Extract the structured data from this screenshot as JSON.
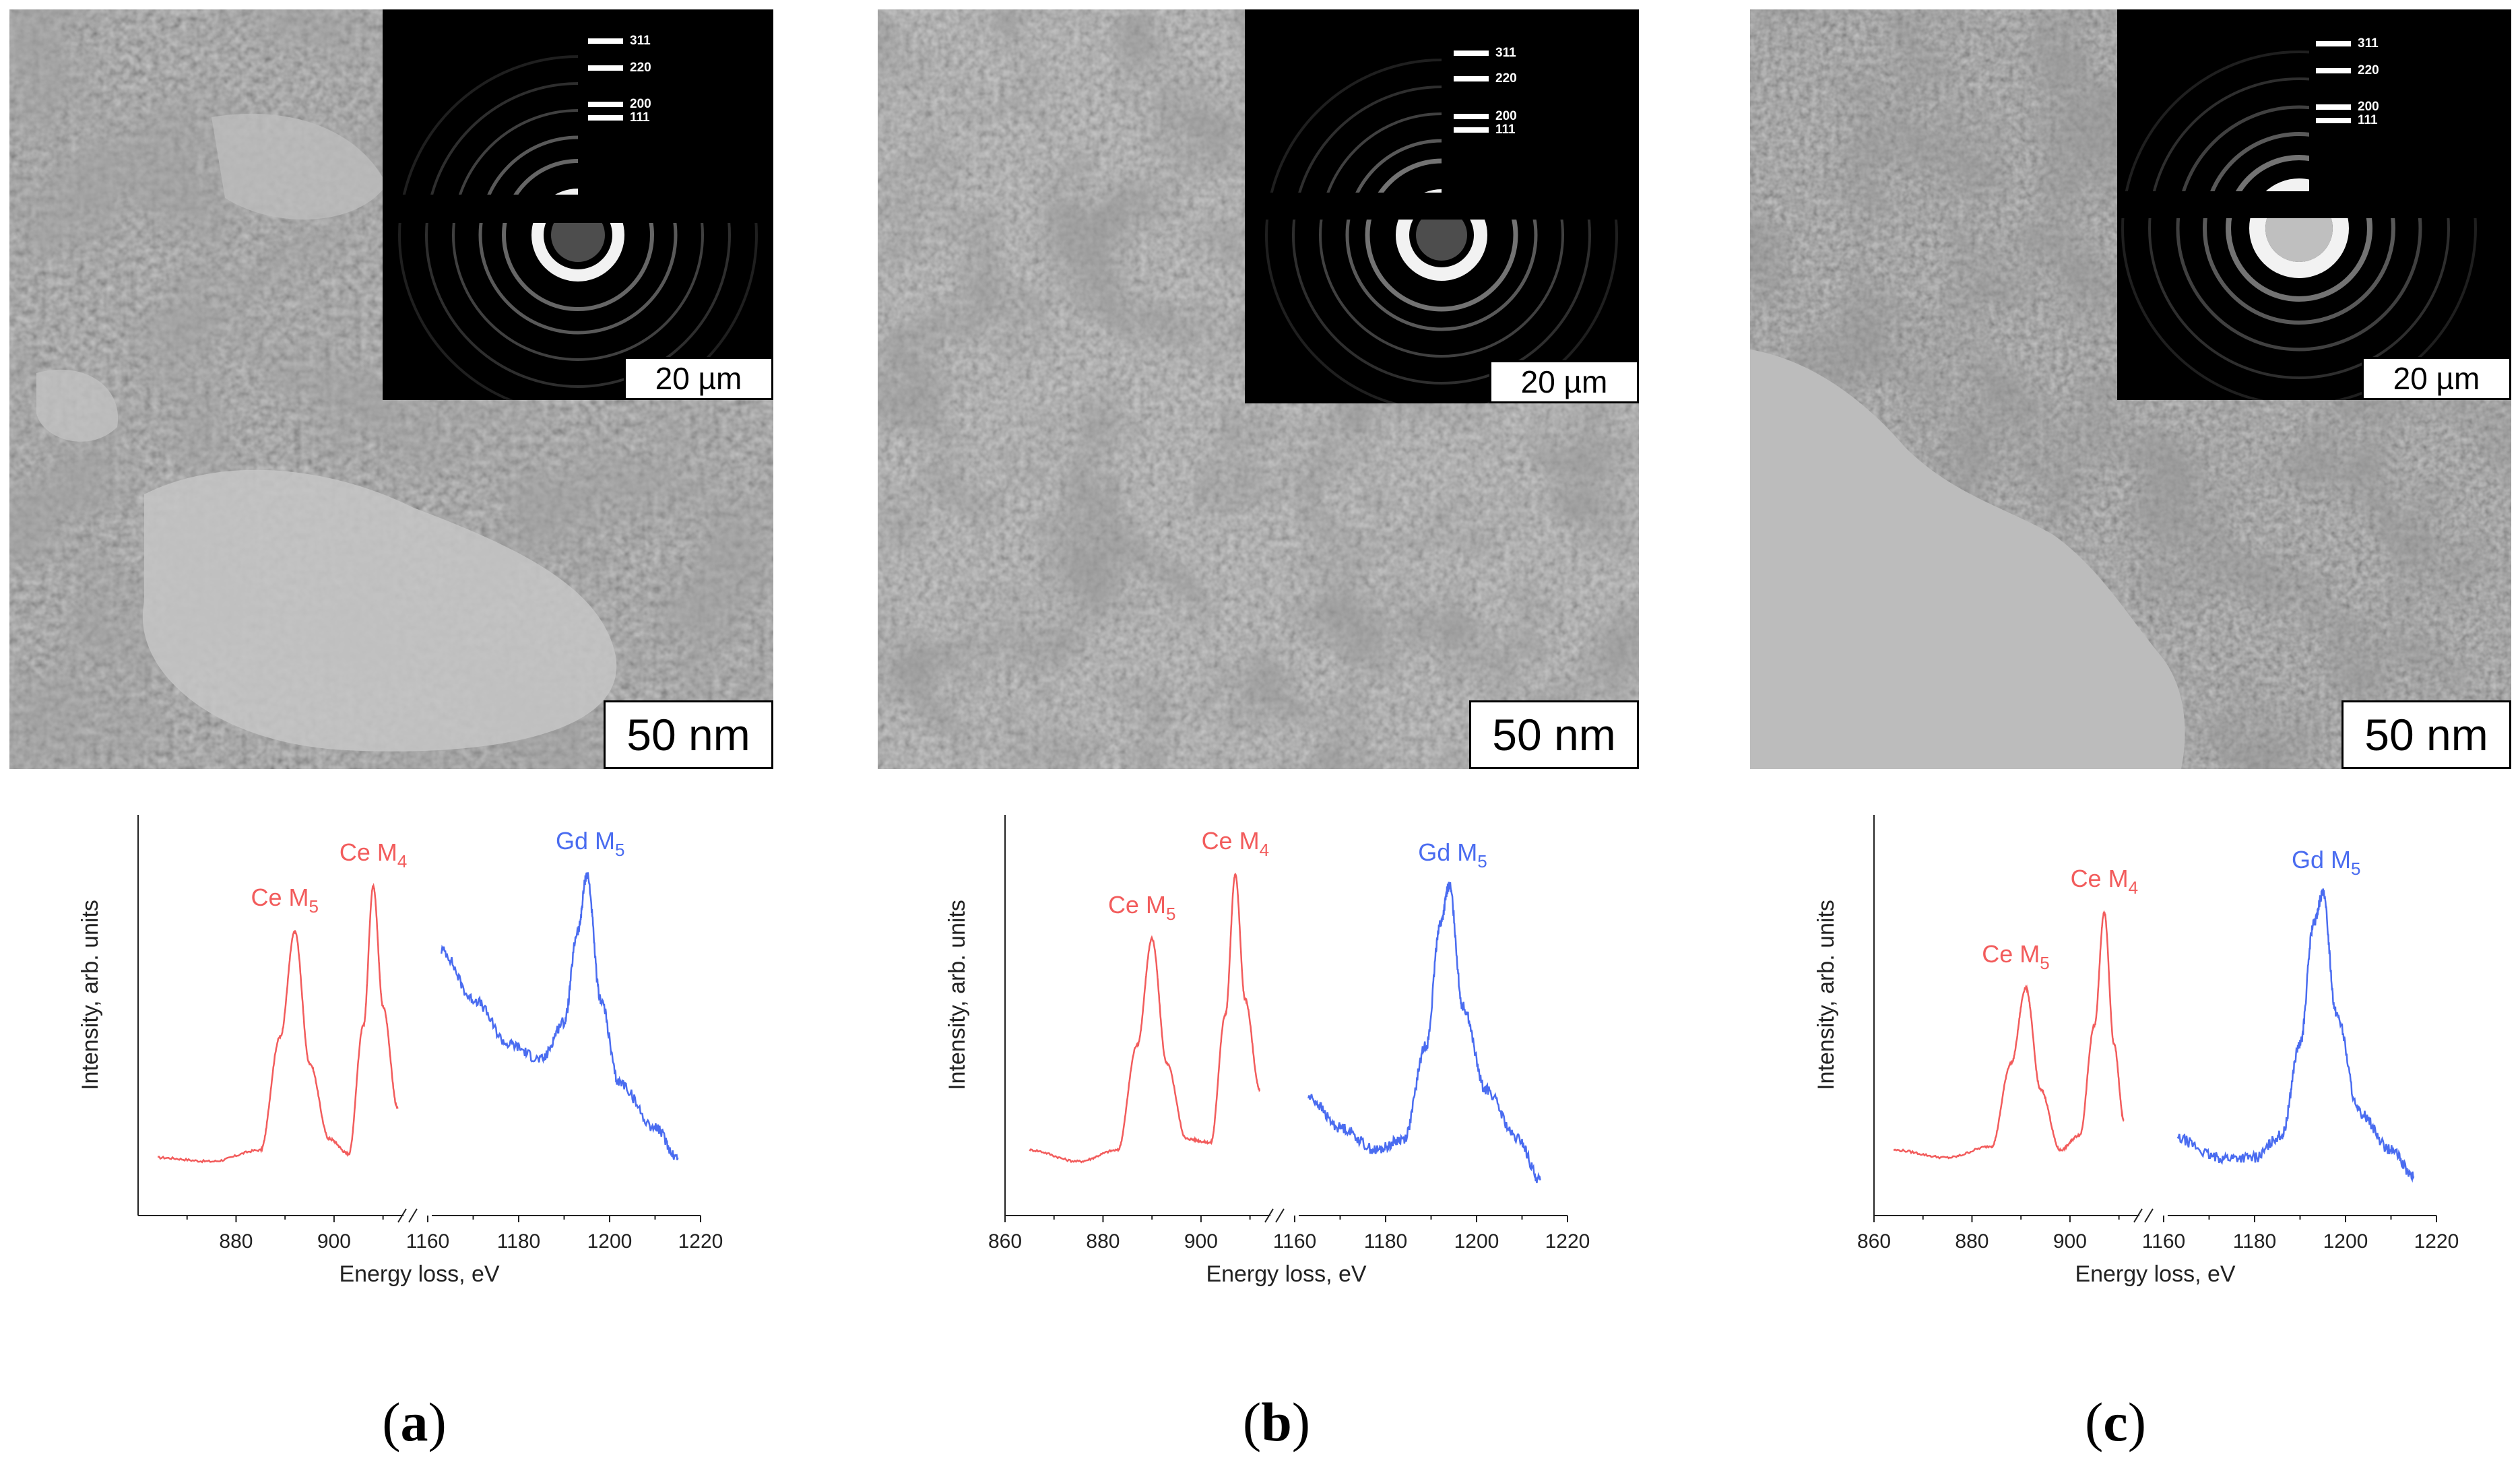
{
  "figure": {
    "panels": [
      {
        "label": "a",
        "tem_scale_bar": "50 nm",
        "saed_scale_bar": "20 µm",
        "ring_labels": [
          "311",
          "220",
          "200",
          "111"
        ],
        "peak_labels": {
          "ce_m5": "Ce M",
          "ce_m5_sub": "5",
          "ce_m4": "Ce M",
          "ce_m4_sub": "4",
          "gd_m5": "Gd M",
          "gd_m5_sub": "5"
        }
      },
      {
        "label": "b",
        "tem_scale_bar": "50 nm",
        "saed_scale_bar": "20 µm",
        "ring_labels": [
          "311",
          "220",
          "200",
          "111"
        ],
        "peak_labels": {
          "ce_m5": "Ce M",
          "ce_m5_sub": "5",
          "ce_m4": "Ce M",
          "ce_m4_sub": "4",
          "gd_m5": "Gd M",
          "gd_m5_sub": "5"
        }
      },
      {
        "label": "c",
        "tem_scale_bar": "50 nm",
        "saed_scale_bar": "20 µm",
        "ring_labels": [
          "311",
          "220",
          "200",
          "111"
        ],
        "peak_labels": {
          "ce_m5": "Ce M",
          "ce_m5_sub": "5",
          "ce_m4": "Ce M",
          "ce_m4_sub": "4",
          "gd_m5": "Gd M",
          "gd_m5_sub": "5"
        }
      }
    ],
    "caption_open": "(",
    "caption_close": ")"
  },
  "colors": {
    "ce": "#f25c5c",
    "gd": "#4a6cf0"
  },
  "chart_data": [
    {
      "type": "line",
      "panel": "a",
      "xlabel": "Energy loss, eV",
      "ylabel": "Intensity, arb. units",
      "x_segments": [
        [
          860,
          915
        ],
        [
          1160,
          1220
        ]
      ],
      "tick_labels_left": [
        "880",
        "900"
      ],
      "tick_labels_right": [
        "1160",
        "1180",
        "1200",
        "1220"
      ],
      "ylim": [
        0,
        1
      ],
      "series": [
        {
          "name": "Ce M5,4",
          "color": "#f25c5c",
          "x": [
            864,
            875,
            885,
            889,
            892,
            895,
            899,
            903,
            906,
            908,
            910,
            913
          ],
          "y": [
            0.1,
            0.09,
            0.12,
            0.42,
            0.7,
            0.35,
            0.15,
            0.11,
            0.45,
            0.82,
            0.5,
            0.23
          ]
        },
        {
          "name": "Gd M5",
          "color": "#4a6cf0",
          "x": [
            1163,
            1170,
            1178,
            1185,
            1190,
            1193,
            1195,
            1198,
            1202,
            1210,
            1215
          ],
          "y": [
            0.65,
            0.52,
            0.4,
            0.36,
            0.46,
            0.7,
            0.85,
            0.52,
            0.3,
            0.18,
            0.1
          ]
        }
      ]
    },
    {
      "type": "line",
      "panel": "b",
      "xlabel": "Energy loss, eV",
      "ylabel": "Intensity, arb. units",
      "x_segments": [
        [
          860,
          915
        ],
        [
          1160,
          1220
        ]
      ],
      "tick_labels_left": [
        "860",
        "880",
        "900"
      ],
      "tick_labels_right": [
        "1160",
        "1180",
        "1200",
        "1220"
      ],
      "ylim": [
        0,
        1
      ],
      "series": [
        {
          "name": "Ce M5,4",
          "color": "#f25c5c",
          "x": [
            865,
            875,
            883,
            887,
            890,
            893,
            897,
            902,
            905,
            907,
            909,
            912
          ],
          "y": [
            0.12,
            0.09,
            0.12,
            0.4,
            0.68,
            0.35,
            0.15,
            0.14,
            0.48,
            0.85,
            0.52,
            0.28
          ]
        },
        {
          "name": "Gd M5",
          "color": "#4a6cf0",
          "x": [
            1163,
            1170,
            1178,
            1184,
            1189,
            1192,
            1194,
            1197,
            1202,
            1209,
            1214
          ],
          "y": [
            0.26,
            0.18,
            0.12,
            0.15,
            0.4,
            0.72,
            0.82,
            0.5,
            0.28,
            0.15,
            0.04
          ]
        }
      ]
    },
    {
      "type": "line",
      "panel": "c",
      "xlabel": "Energy loss, eV",
      "ylabel": "Intensity, arb. units",
      "x_segments": [
        [
          860,
          915
        ],
        [
          1160,
          1220
        ]
      ],
      "tick_labels_left": [
        "860",
        "880",
        "900"
      ],
      "tick_labels_right": [
        "1160",
        "1180",
        "1200",
        "1220"
      ],
      "ylim": [
        0,
        1
      ],
      "series": [
        {
          "name": "Ce M5,4",
          "color": "#f25c5c",
          "x": [
            864,
            875,
            884,
            888,
            891,
            894,
            898,
            902,
            905,
            907,
            909,
            911
          ],
          "y": [
            0.12,
            0.1,
            0.13,
            0.35,
            0.55,
            0.28,
            0.12,
            0.16,
            0.45,
            0.75,
            0.4,
            0.2
          ]
        },
        {
          "name": "Gd M5",
          "color": "#4a6cf0",
          "x": [
            1163,
            1172,
            1180,
            1186,
            1190,
            1193,
            1195,
            1198,
            1203,
            1210,
            1215
          ],
          "y": [
            0.15,
            0.1,
            0.1,
            0.16,
            0.4,
            0.72,
            0.8,
            0.48,
            0.22,
            0.12,
            0.05
          ]
        }
      ]
    }
  ]
}
